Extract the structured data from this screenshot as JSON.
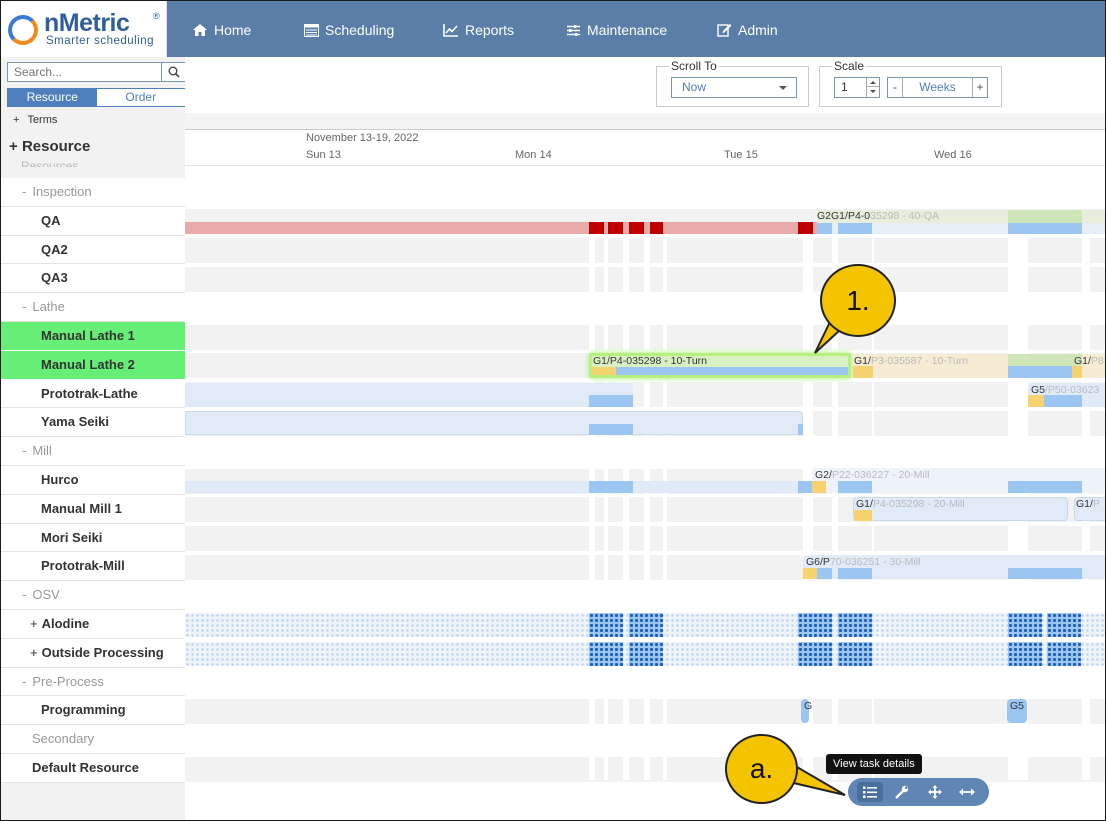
{
  "brand": {
    "name": "nMetric",
    "reg": "®",
    "tagline": "Smarter scheduling"
  },
  "nav": {
    "items": [
      {
        "label": "Home",
        "icon": "home-icon"
      },
      {
        "label": "Scheduling",
        "icon": "calendar-icon"
      },
      {
        "label": "Reports",
        "icon": "chart-icon"
      },
      {
        "label": "Maintenance",
        "icon": "sliders-icon"
      },
      {
        "label": "Admin",
        "icon": "edit-icon"
      }
    ]
  },
  "sidebar": {
    "search_placeholder": "Search...",
    "toggle": {
      "resource": "Resource",
      "order": "Order"
    },
    "terms_label": "Terms",
    "resource_header": "Resource",
    "resources_ghost": "Resources",
    "rows": [
      {
        "label": "Inspection",
        "kind": "group"
      },
      {
        "label": "QA",
        "kind": "item"
      },
      {
        "label": "QA2",
        "kind": "item"
      },
      {
        "label": "QA3",
        "kind": "item"
      },
      {
        "label": "Lathe",
        "kind": "group"
      },
      {
        "label": "Manual Lathe 1",
        "kind": "item",
        "highlight": true
      },
      {
        "label": "Manual Lathe 2",
        "kind": "item",
        "highlight": true
      },
      {
        "label": "Prototrak-Lathe",
        "kind": "item"
      },
      {
        "label": "Yama Seiki",
        "kind": "item"
      },
      {
        "label": "Mill",
        "kind": "group"
      },
      {
        "label": "Hurco",
        "kind": "item"
      },
      {
        "label": "Manual Mill 1",
        "kind": "item"
      },
      {
        "label": "Mori Seiki",
        "kind": "item"
      },
      {
        "label": "Prototrak-Mill",
        "kind": "item"
      },
      {
        "label": "OSV",
        "kind": "group"
      },
      {
        "label": "Alodine",
        "kind": "item_expandable"
      },
      {
        "label": "Outside Processing",
        "kind": "item_expandable"
      },
      {
        "label": "Pre-Process",
        "kind": "group"
      },
      {
        "label": "Programming",
        "kind": "item"
      },
      {
        "label": "Secondary",
        "kind": "plain"
      },
      {
        "label": "Default Resource",
        "kind": "plain_bold"
      }
    ]
  },
  "controls": {
    "scroll_to": {
      "legend": "Scroll To",
      "value": "Now"
    },
    "scale": {
      "legend": "Scale",
      "value": "1",
      "unit": "Weeks",
      "minus": "-",
      "plus": "+"
    }
  },
  "timeline": {
    "week": "November 13-19, 2022",
    "days": [
      "Sun 13",
      "Mon 14",
      "Tue 15",
      "Wed 16"
    ]
  },
  "tasks": {
    "qa": {
      "pre": "G2",
      "bold": "G1/P4-0",
      "rest": "35298 - 40-QA"
    },
    "ml2_sel": {
      "bold": "G1/P4-035298 - 10-Turn"
    },
    "ml2_next": {
      "bold": "G1/",
      "rest": "P3-035587 - 10-Turn"
    },
    "ml2_far": {
      "bold": "G1/",
      "rest": "P8"
    },
    "proto_lathe": {
      "bold": "G5",
      "rest": "/P50-03623"
    },
    "hurco": {
      "bold": "G2/",
      "rest": "P22-036227 - 20-Mill"
    },
    "hurco_b": {
      "bold": "P22-036",
      "rest": "227 - 20-Mill"
    },
    "mill1": {
      "bold": "G1/",
      "rest": "P4-035298 - 20-Mill"
    },
    "mill1_far": {
      "bold": "G1/",
      "rest": "P"
    },
    "proto_mill": {
      "bold": "G6/P",
      "rest": "70-036251 - 30-Mill"
    },
    "proto_mill_b": {
      "bold": "70-0362",
      "rest": "51 - 30-Mill"
    },
    "prog_a": "G",
    "prog_b": "G5"
  },
  "callouts": {
    "one": "1.",
    "a": "a."
  },
  "toolbar": {
    "tooltip": "View task details",
    "icons": [
      "list-icon",
      "wrench-icon",
      "move-icon",
      "resize-horizontal-icon"
    ]
  },
  "colors": {
    "nav": "#5a7ea8",
    "selected_task": "#66ee77",
    "late": "#c00000",
    "callout": "#f5c400",
    "toolbar": "#5f86b5",
    "task_blue": "#9cc6f2",
    "task_yellow": "#f7d270"
  }
}
